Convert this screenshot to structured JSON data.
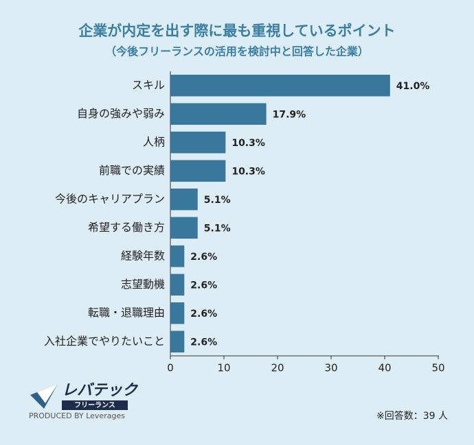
{
  "chart_data": {
    "type": "bar",
    "orientation": "horizontal",
    "title": "企業が内定を出す際に最も重視しているポイント",
    "subtitle": "（今後フリーランスの活用を検討中と回答した企業）",
    "categories": [
      "スキル",
      "自身の強みや弱み",
      "人柄",
      "前職での実績",
      "今後のキャリアプラン",
      "希望する働き方",
      "経験年数",
      "志望動機",
      "転職・退職理由",
      "入社企業でやりたいこと"
    ],
    "values": [
      41.0,
      17.9,
      10.3,
      10.3,
      5.1,
      5.1,
      2.6,
      2.6,
      2.6,
      2.6
    ],
    "value_labels": [
      "41.0%",
      "17.9%",
      "10.3%",
      "10.3%",
      "5.1%",
      "5.1%",
      "2.6%",
      "2.6%",
      "2.6%",
      "2.6%"
    ],
    "color": "#3a779c",
    "xlim": [
      0,
      50
    ],
    "xticks": [
      0,
      10,
      20,
      30,
      40,
      50
    ],
    "note": "※回答数：39 人",
    "logo": {
      "name": "レバテック",
      "sub": "フリーランス",
      "credit": "PRODUCED BY Leverages"
    }
  }
}
